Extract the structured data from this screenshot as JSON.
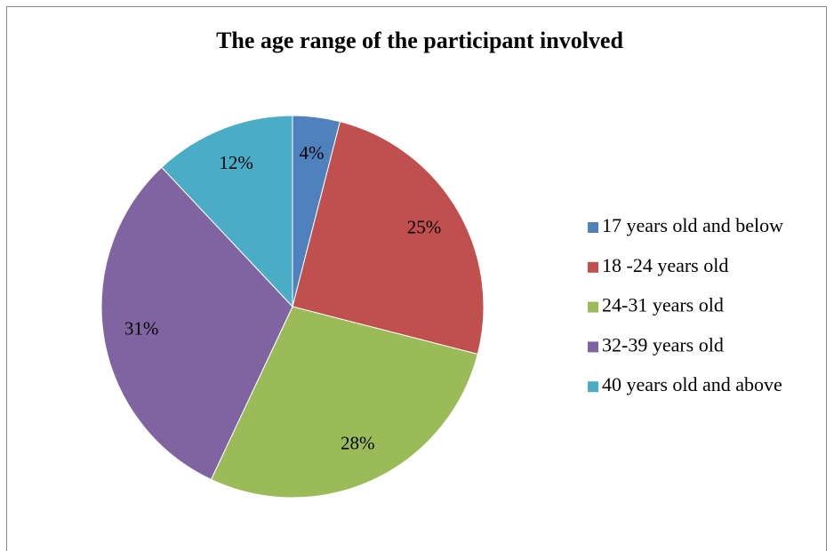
{
  "chart_data": {
    "type": "pie",
    "title": "The age range of the participant involved",
    "categories": [
      "17 years old and below",
      "18 -24 years old",
      "24-31 years old",
      "32-39 years old",
      "40 years old and above"
    ],
    "values": [
      4,
      25,
      28,
      31,
      12
    ],
    "value_labels": [
      "4%",
      "25%",
      "28%",
      "31%",
      "12%"
    ],
    "colors": [
      "#4f81bd",
      "#c0504d",
      "#9bbb59",
      "#8064a2",
      "#4bacc6"
    ],
    "legend": "right"
  }
}
